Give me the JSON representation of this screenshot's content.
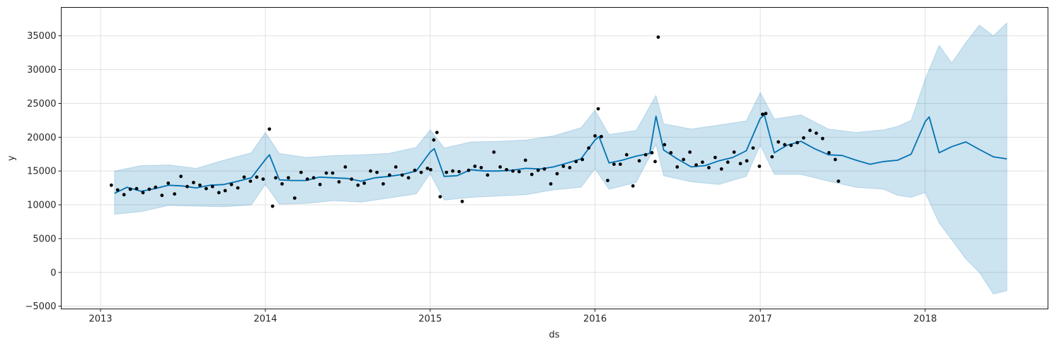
{
  "chart_data": {
    "type": "line",
    "title": "",
    "xlabel": "ds",
    "ylabel": "y",
    "xlim": [
      "2012-10-06",
      "2018-09-30"
    ],
    "ylim": [
      -5400,
      39200
    ],
    "grid": true,
    "x_ticks": [
      {
        "date": "2013-01-01",
        "label": "2013"
      },
      {
        "date": "2014-01-01",
        "label": "2014"
      },
      {
        "date": "2015-01-01",
        "label": "2015"
      },
      {
        "date": "2016-01-01",
        "label": "2016"
      },
      {
        "date": "2017-01-01",
        "label": "2017"
      },
      {
        "date": "2018-01-01",
        "label": "2018"
      }
    ],
    "y_ticks": [
      {
        "value": -5000,
        "label": "−5000"
      },
      {
        "value": 0,
        "label": "0"
      },
      {
        "value": 5000,
        "label": "5000"
      },
      {
        "value": 10000,
        "label": "10000"
      },
      {
        "value": 15000,
        "label": "15000"
      },
      {
        "value": 20000,
        "label": "20000"
      },
      {
        "value": 25000,
        "label": "25000"
      },
      {
        "value": 30000,
        "label": "30000"
      },
      {
        "value": 35000,
        "label": "35000"
      }
    ],
    "colors": {
      "forecast_line": "#0072b2",
      "uncertainty_band": "#0072b2",
      "observed_points": "#000000",
      "grid": "#e0e0e0"
    },
    "series": [
      {
        "kind": "forecast",
        "x": [
          "2013-02-01",
          "2013-03-01",
          "2013-04-01",
          "2013-05-01",
          "2013-06-01",
          "2013-07-01",
          "2013-08-01",
          "2013-09-01",
          "2013-10-01",
          "2013-11-01",
          "2013-12-01",
          "2014-01-01",
          "2014-01-10",
          "2014-02-01",
          "2014-03-01",
          "2014-04-01",
          "2014-05-01",
          "2014-06-01",
          "2014-07-01",
          "2014-08-01",
          "2014-09-01",
          "2014-10-01",
          "2014-11-01",
          "2014-12-01",
          "2015-01-01",
          "2015-01-10",
          "2015-02-01",
          "2015-03-01",
          "2015-04-01",
          "2015-05-01",
          "2015-06-01",
          "2015-07-01",
          "2015-08-01",
          "2015-09-01",
          "2015-10-01",
          "2015-11-01",
          "2015-12-01",
          "2016-01-01",
          "2016-01-10",
          "2016-02-01",
          "2016-03-01",
          "2016-04-01",
          "2016-05-01",
          "2016-05-15",
          "2016-06-01",
          "2016-07-01",
          "2016-08-01",
          "2016-09-01",
          "2016-10-01",
          "2016-11-01",
          "2016-12-01",
          "2017-01-01",
          "2017-01-10",
          "2017-02-01",
          "2017-03-01",
          "2017-04-01",
          "2017-05-01",
          "2017-06-01",
          "2017-07-01",
          "2017-08-01",
          "2017-09-01",
          "2017-10-01",
          "2017-11-01",
          "2017-12-01",
          "2018-01-01",
          "2018-01-10",
          "2018-02-01",
          "2018-03-01",
          "2018-04-01",
          "2018-05-01",
          "2018-06-01",
          "2018-07-01"
        ],
        "y": [
          11700,
          12600,
          12000,
          12400,
          12900,
          12800,
          12500,
          12900,
          13000,
          13500,
          14000,
          16700,
          17400,
          13700,
          13600,
          13600,
          14100,
          14000,
          13900,
          13500,
          14000,
          14200,
          14500,
          15000,
          17800,
          18300,
          14200,
          14300,
          15200,
          15000,
          15000,
          15100,
          15400,
          15300,
          15600,
          16200,
          16800,
          19600,
          20100,
          16200,
          16600,
          17200,
          17600,
          23100,
          18100,
          16800,
          15600,
          15800,
          16500,
          17000,
          18000,
          22800,
          23300,
          17700,
          18800,
          19400,
          18300,
          17400,
          17300,
          16600,
          16000,
          16400,
          16600,
          17500,
          22300,
          23000,
          17700,
          18600,
          19300,
          18200,
          17100,
          16800
        ]
      },
      {
        "kind": "uncertainty_upper",
        "x": [
          "2013-02-01",
          "2013-04-01",
          "2013-06-01",
          "2013-08-01",
          "2013-10-01",
          "2013-12-01",
          "2014-01-01",
          "2014-02-01",
          "2014-04-01",
          "2014-06-01",
          "2014-08-01",
          "2014-10-01",
          "2014-12-01",
          "2015-01-01",
          "2015-02-01",
          "2015-04-01",
          "2015-06-01",
          "2015-08-01",
          "2015-10-01",
          "2015-12-01",
          "2016-01-01",
          "2016-02-01",
          "2016-04-01",
          "2016-05-15",
          "2016-06-01",
          "2016-08-01",
          "2016-10-01",
          "2016-12-01",
          "2017-01-01",
          "2017-02-01",
          "2017-04-01",
          "2017-06-01",
          "2017-08-01",
          "2017-10-01",
          "2017-11-01",
          "2017-12-01",
          "2018-01-01",
          "2018-02-01",
          "2018-03-01",
          "2018-04-01",
          "2018-05-01",
          "2018-06-01",
          "2018-07-01"
        ],
        "y": [
          15000,
          15800,
          15900,
          15400,
          16600,
          17700,
          20700,
          17600,
          17000,
          17300,
          17400,
          17600,
          18500,
          21100,
          18400,
          19300,
          19400,
          19600,
          20200,
          21400,
          24000,
          20400,
          21000,
          26200,
          22000,
          21200,
          21800,
          22400,
          26600,
          22700,
          23300,
          21200,
          20700,
          21100,
          21600,
          22500,
          28600,
          33600,
          31000,
          34000,
          36600,
          35000,
          36900
        ]
      },
      {
        "kind": "uncertainty_lower",
        "x": [
          "2013-02-01",
          "2013-04-01",
          "2013-06-01",
          "2013-08-01",
          "2013-10-01",
          "2013-12-01",
          "2014-01-01",
          "2014-02-01",
          "2014-04-01",
          "2014-06-01",
          "2014-08-01",
          "2014-10-01",
          "2014-12-01",
          "2015-01-01",
          "2015-02-01",
          "2015-04-01",
          "2015-06-01",
          "2015-08-01",
          "2015-10-01",
          "2015-12-01",
          "2016-01-01",
          "2016-02-01",
          "2016-04-01",
          "2016-05-15",
          "2016-06-01",
          "2016-08-01",
          "2016-10-01",
          "2016-12-01",
          "2017-01-01",
          "2017-02-01",
          "2017-04-01",
          "2017-06-01",
          "2017-08-01",
          "2017-10-01",
          "2017-11-01",
          "2017-12-01",
          "2018-01-01",
          "2018-02-01",
          "2018-03-01",
          "2018-04-01",
          "2018-05-01",
          "2018-06-01",
          "2018-07-01"
        ],
        "y": [
          8600,
          9000,
          9900,
          9800,
          9700,
          10000,
          13000,
          10100,
          10200,
          10600,
          10400,
          11000,
          11600,
          14600,
          10700,
          11100,
          11300,
          11500,
          12200,
          12600,
          15300,
          12300,
          13300,
          18900,
          14300,
          13400,
          13000,
          14200,
          18800,
          14500,
          14500,
          13500,
          12600,
          12300,
          11400,
          11100,
          11800,
          7300,
          4800,
          2000,
          0,
          -3200,
          -2700
        ]
      },
      {
        "kind": "observed",
        "x": [
          "2013-01-25",
          "2013-02-08",
          "2013-02-22",
          "2013-03-08",
          "2013-03-22",
          "2013-04-05",
          "2013-04-19",
          "2013-05-03",
          "2013-05-17",
          "2013-05-31",
          "2013-06-14",
          "2013-06-28",
          "2013-07-12",
          "2013-07-26",
          "2013-08-09",
          "2013-08-23",
          "2013-09-06",
          "2013-09-20",
          "2013-10-04",
          "2013-10-18",
          "2013-11-01",
          "2013-11-15",
          "2013-11-29",
          "2013-12-13",
          "2013-12-27",
          "2014-01-10",
          "2014-01-17",
          "2014-01-24",
          "2014-02-07",
          "2014-02-21",
          "2014-03-07",
          "2014-03-21",
          "2014-04-04",
          "2014-04-18",
          "2014-05-02",
          "2014-05-16",
          "2014-05-30",
          "2014-06-13",
          "2014-06-27",
          "2014-07-11",
          "2014-07-25",
          "2014-08-08",
          "2014-08-22",
          "2014-09-05",
          "2014-09-19",
          "2014-10-03",
          "2014-10-17",
          "2014-10-31",
          "2014-11-14",
          "2014-11-28",
          "2014-12-12",
          "2014-12-26",
          "2015-01-02",
          "2015-01-09",
          "2015-01-16",
          "2015-01-23",
          "2015-02-06",
          "2015-02-20",
          "2015-03-06",
          "2015-03-13",
          "2015-03-27",
          "2015-04-10",
          "2015-04-24",
          "2015-05-08",
          "2015-05-22",
          "2015-06-05",
          "2015-06-19",
          "2015-07-03",
          "2015-07-17",
          "2015-07-31",
          "2015-08-14",
          "2015-08-28",
          "2015-09-11",
          "2015-09-25",
          "2015-10-09",
          "2015-10-23",
          "2015-11-06",
          "2015-11-20",
          "2015-12-04",
          "2015-12-18",
          "2016-01-01",
          "2016-01-08",
          "2016-01-15",
          "2016-01-29",
          "2016-02-12",
          "2016-02-26",
          "2016-03-11",
          "2016-03-25",
          "2016-04-08",
          "2016-04-22",
          "2016-05-06",
          "2016-05-13",
          "2016-05-20",
          "2016-06-03",
          "2016-06-17",
          "2016-07-01",
          "2016-07-15",
          "2016-07-29",
          "2016-08-12",
          "2016-08-26",
          "2016-09-09",
          "2016-09-23",
          "2016-10-07",
          "2016-10-21",
          "2016-11-04",
          "2016-11-18",
          "2016-12-02",
          "2016-12-16",
          "2016-12-30",
          "2017-01-06",
          "2017-01-13",
          "2017-01-27",
          "2017-02-10",
          "2017-02-24",
          "2017-03-10",
          "2017-03-24",
          "2017-04-07",
          "2017-04-21",
          "2017-05-05",
          "2017-05-19",
          "2017-06-02",
          "2017-06-16",
          "2017-06-23"
        ],
        "y": [
          12900,
          12200,
          11500,
          12300,
          12400,
          11800,
          12300,
          12600,
          11400,
          13200,
          11600,
          14200,
          12700,
          13300,
          12900,
          12400,
          12700,
          11800,
          12100,
          13000,
          12500,
          14100,
          13500,
          14100,
          13800,
          21200,
          9800,
          14000,
          13100,
          14000,
          11000,
          14800,
          13800,
          14000,
          13000,
          14700,
          14700,
          13400,
          15600,
          13800,
          12900,
          13200,
          15000,
          14800,
          13100,
          14400,
          15600,
          14400,
          14000,
          15100,
          14800,
          15400,
          15200,
          19600,
          20700,
          11200,
          14800,
          15000,
          14900,
          10500,
          15100,
          15700,
          15500,
          14400,
          17800,
          15600,
          15200,
          15000,
          14900,
          16600,
          14500,
          15100,
          15300,
          13100,
          14600,
          15700,
          15500,
          16400,
          16700,
          18400,
          20200,
          24200,
          20100,
          13600,
          16000,
          16000,
          17400,
          12800,
          16500,
          17400,
          17700,
          16400,
          34800,
          18900,
          17700,
          15600,
          16700,
          17800,
          15900,
          16300,
          15500,
          17000,
          15300,
          16300,
          17800,
          16100,
          16500,
          18400,
          15700,
          23400,
          23500,
          17100,
          19300,
          18900,
          18800,
          19200,
          19900,
          21000,
          20600,
          19800,
          17700,
          16700,
          13500
        ]
      }
    ]
  }
}
